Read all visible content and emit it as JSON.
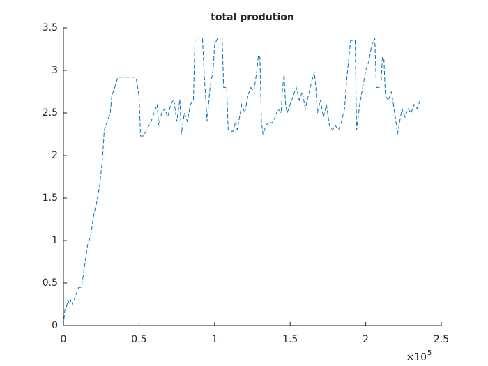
{
  "chart_data": {
    "type": "line",
    "title": "total prodution",
    "x_multiplier": "×10",
    "x_multiplier_exponent": "5",
    "x": [
      0,
      0.01,
      0.02,
      0.03,
      0.04,
      0.05,
      0.06,
      0.08,
      0.1,
      0.12,
      0.14,
      0.16,
      0.18,
      0.2,
      0.22,
      0.24,
      0.26,
      0.27,
      0.29,
      0.31,
      0.32,
      0.34,
      0.36,
      0.4,
      0.45,
      0.48,
      0.5,
      0.51,
      0.53,
      0.55,
      0.58,
      0.6,
      0.62,
      0.63,
      0.65,
      0.67,
      0.69,
      0.71,
      0.73,
      0.75,
      0.77,
      0.78,
      0.8,
      0.82,
      0.84,
      0.86,
      0.87,
      0.88,
      0.92,
      0.93,
      0.95,
      0.97,
      0.99,
      1.0,
      1.02,
      1.05,
      1.06,
      1.08,
      1.09,
      1.12,
      1.14,
      1.15,
      1.17,
      1.18,
      1.2,
      1.22,
      1.24,
      1.26,
      1.28,
      1.29,
      1.3,
      1.31,
      1.32,
      1.34,
      1.36,
      1.38,
      1.4,
      1.42,
      1.44,
      1.45,
      1.46,
      1.47,
      1.48,
      1.5,
      1.52,
      1.54,
      1.56,
      1.58,
      1.6,
      1.62,
      1.64,
      1.66,
      1.67,
      1.68,
      1.7,
      1.72,
      1.74,
      1.76,
      1.78,
      1.8,
      1.82,
      1.84,
      1.86,
      1.87,
      1.88,
      1.9,
      1.93,
      1.94,
      1.96,
      1.98,
      2.0,
      2.02,
      2.04,
      2.06,
      2.07,
      2.1,
      2.11,
      2.12,
      2.13,
      2.15,
      2.17,
      2.2,
      2.21,
      2.22,
      2.24,
      2.26,
      2.28,
      2.3,
      2.32,
      2.34,
      2.36,
      2.37
    ],
    "series": [
      {
        "color": "#0072bd",
        "values": [
          0,
          0.2,
          0.22,
          0.3,
          0.25,
          0.3,
          0.25,
          0.35,
          0.45,
          0.45,
          0.7,
          0.95,
          1.05,
          1.3,
          1.45,
          1.65,
          2.0,
          2.3,
          2.4,
          2.5,
          2.7,
          2.8,
          2.92,
          2.92,
          2.92,
          2.92,
          2.7,
          2.23,
          2.23,
          2.3,
          2.4,
          2.5,
          2.6,
          2.35,
          2.5,
          2.55,
          2.45,
          2.6,
          2.66,
          2.4,
          2.66,
          2.25,
          2.5,
          2.4,
          2.6,
          2.65,
          3.35,
          3.38,
          3.38,
          3.0,
          2.4,
          2.8,
          3.0,
          3.3,
          3.38,
          3.38,
          2.8,
          2.8,
          2.3,
          2.28,
          2.4,
          2.3,
          2.5,
          2.6,
          2.5,
          2.7,
          2.8,
          2.75,
          3.0,
          3.18,
          3.15,
          2.4,
          2.25,
          2.35,
          2.4,
          2.38,
          2.45,
          2.55,
          2.5,
          2.8,
          2.95,
          2.6,
          2.5,
          2.6,
          2.7,
          2.8,
          2.65,
          2.75,
          2.55,
          2.7,
          2.85,
          2.98,
          2.8,
          2.5,
          2.65,
          2.45,
          2.6,
          2.35,
          2.3,
          2.35,
          2.3,
          2.4,
          2.55,
          2.8,
          3.0,
          3.35,
          3.35,
          2.3,
          2.6,
          2.8,
          3.0,
          3.1,
          3.3,
          3.38,
          2.8,
          2.8,
          3.15,
          3.15,
          2.7,
          2.65,
          2.75,
          2.4,
          2.25,
          2.35,
          2.55,
          2.45,
          2.55,
          2.5,
          2.6,
          2.55,
          2.65,
          2.68
        ]
      }
    ],
    "xlim": [
      0,
      2.5
    ],
    "xticks": [
      0,
      0.5,
      1,
      1.5,
      2,
      2.5
    ],
    "ylim": [
      0,
      3.5
    ],
    "yticks": [
      0,
      0.5,
      1,
      1.5,
      2,
      2.5,
      3,
      3.5
    ],
    "line_style": "dashed",
    "grid": false
  }
}
